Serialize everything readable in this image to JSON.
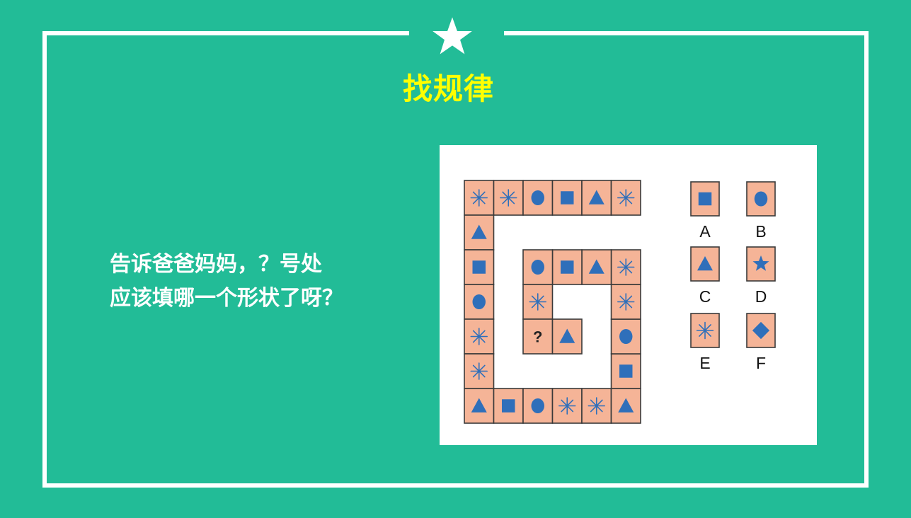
{
  "colors": {
    "background": "#22bc97",
    "frame": "#ffffff",
    "title": "#ffff00",
    "question_text": "#ffffff",
    "tile_fill": "#f5b497",
    "tile_border": "#3a3a3a",
    "shape": "#2f6fba"
  },
  "header": {
    "star_icon": "star-icon",
    "title": "找规律"
  },
  "question": {
    "line1": "告诉爸爸妈妈，？号处",
    "line2": "应该填哪一个形状了呀？"
  },
  "puzzle": {
    "spiral_tiles": [
      {
        "shape": "asterisk"
      },
      {
        "shape": "asterisk"
      },
      {
        "shape": "circle"
      },
      {
        "shape": "square"
      },
      {
        "shape": "triangle"
      },
      {
        "shape": "asterisk"
      },
      {
        "shape": "triangle"
      },
      {
        "shape": "square"
      },
      {
        "shape": "circle"
      },
      {
        "shape": "asterisk"
      },
      {
        "shape": "asterisk"
      },
      {
        "shape": "triangle"
      },
      {
        "shape": "square"
      },
      {
        "shape": "circle"
      },
      {
        "shape": "asterisk"
      },
      {
        "shape": "asterisk"
      },
      {
        "shape": "triangle"
      },
      {
        "shape": "square"
      },
      {
        "shape": "circle"
      },
      {
        "shape": "asterisk"
      },
      {
        "shape": "asterisk"
      },
      {
        "shape": "triangle"
      },
      {
        "shape": "square"
      },
      {
        "shape": "circle"
      },
      {
        "shape": "asterisk"
      },
      {
        "shape": "unknown",
        "label": "?"
      },
      {
        "shape": "triangle"
      }
    ],
    "options": [
      {
        "label": "A",
        "shape": "square"
      },
      {
        "label": "B",
        "shape": "circle"
      },
      {
        "label": "C",
        "shape": "triangle"
      },
      {
        "label": "D",
        "shape": "star"
      },
      {
        "label": "E",
        "shape": "asterisk"
      },
      {
        "label": "F",
        "shape": "diamond"
      }
    ]
  }
}
